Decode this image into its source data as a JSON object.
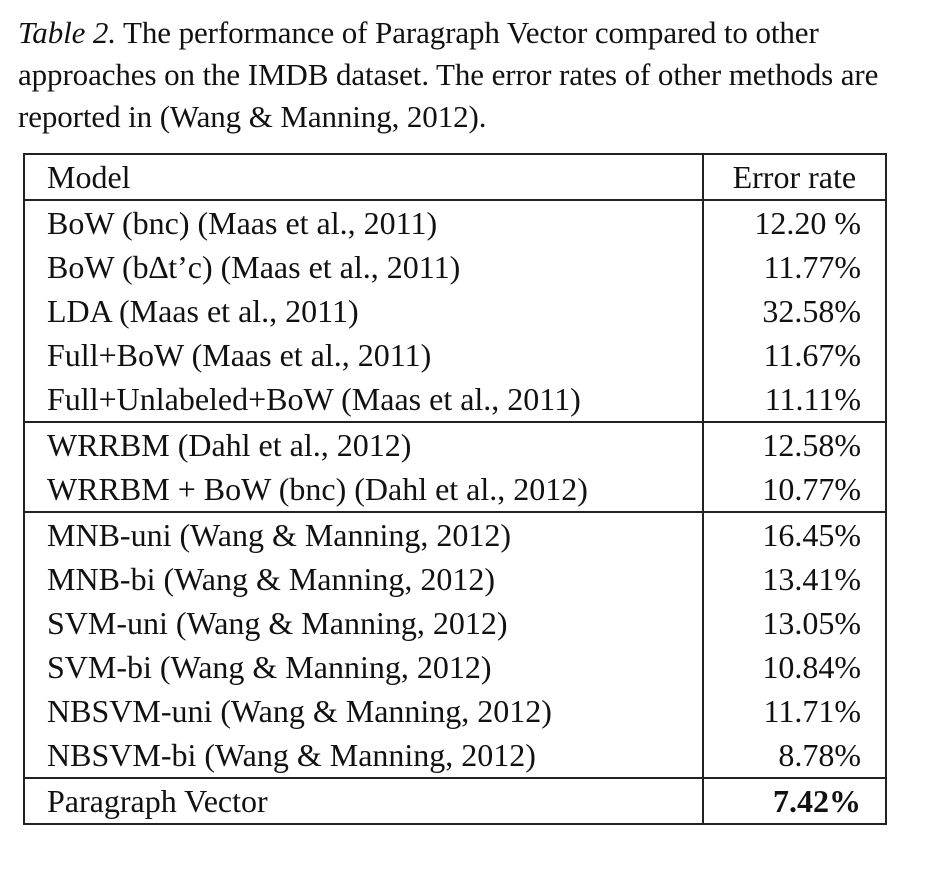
{
  "caption": {
    "label": "Table 2.",
    "text": " The performance of Paragraph Vector compared to other approaches on the IMDB dataset. The error rates of other methods are reported in (Wang & Manning, 2012)."
  },
  "table": {
    "headers": {
      "model": "Model",
      "error_rate": "Error rate"
    },
    "groups": [
      {
        "rows": [
          {
            "model": "BoW (bnc) (Maas et al., 2011)",
            "error_rate": "12.20 %"
          },
          {
            "model": "BoW (b∆t’c) (Maas et al., 2011)",
            "error_rate": "11.77%"
          },
          {
            "model": "LDA (Maas et al., 2011)",
            "error_rate": "32.58%"
          },
          {
            "model": "Full+BoW (Maas et al., 2011)",
            "error_rate": "11.67%"
          },
          {
            "model": "Full+Unlabeled+BoW (Maas et al., 2011)",
            "error_rate": "11.11%"
          }
        ]
      },
      {
        "rows": [
          {
            "model": "WRRBM (Dahl et al., 2012)",
            "error_rate": "12.58%"
          },
          {
            "model": "WRRBM + BoW (bnc) (Dahl et al., 2012)",
            "error_rate": "10.77%"
          }
        ]
      },
      {
        "rows": [
          {
            "model": "MNB-uni (Wang & Manning, 2012)",
            "error_rate": "16.45%"
          },
          {
            "model": "MNB-bi (Wang & Manning, 2012)",
            "error_rate": "13.41%"
          },
          {
            "model": "SVM-uni (Wang & Manning, 2012)",
            "error_rate": "13.05%"
          },
          {
            "model": "SVM-bi (Wang & Manning, 2012)",
            "error_rate": "10.84%"
          },
          {
            "model": "NBSVM-uni (Wang & Manning, 2012)",
            "error_rate": "11.71%"
          },
          {
            "model": "NBSVM-bi (Wang & Manning, 2012)",
            "error_rate": "8.78%"
          }
        ]
      },
      {
        "rows": [
          {
            "model": "Paragraph Vector",
            "error_rate": "7.42%",
            "bold": true
          }
        ]
      }
    ]
  }
}
